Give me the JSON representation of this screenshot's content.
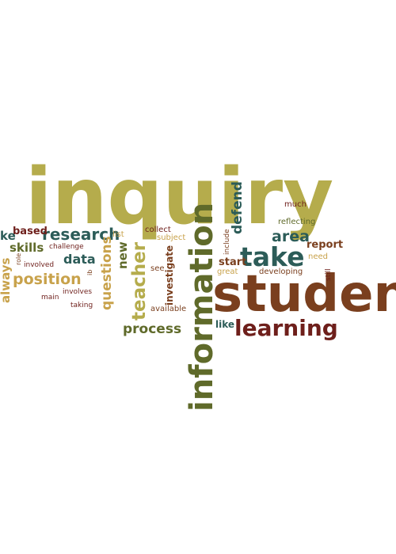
{
  "colors": {
    "olive": "#b5ac4c",
    "brown": "#7a3f1e",
    "maroon": "#6e1f1b",
    "teal": "#2c5c58",
    "dark_olive": "#5f6a2a",
    "tan": "#c8a24b"
  },
  "words": [
    {
      "text": "inquiry",
      "color": "#b5ac4c"
    },
    {
      "text": "student",
      "color": "#7a3f1e"
    },
    {
      "text": "information",
      "color": "#5f6a2a"
    },
    {
      "text": "take",
      "color": "#2c5c58"
    },
    {
      "text": "learning",
      "color": "#6e1f1b"
    },
    {
      "text": "research",
      "color": "#2c5c58"
    },
    {
      "text": "position",
      "color": "#c8a24b"
    },
    {
      "text": "teacher",
      "color": "#b5ac4c"
    },
    {
      "text": "questions",
      "color": "#c8a24b"
    },
    {
      "text": "process",
      "color": "#5f6a2a"
    },
    {
      "text": "area",
      "color": "#2c5c58"
    },
    {
      "text": "defend",
      "color": "#2c5c58"
    },
    {
      "text": "skills",
      "color": "#5f6a2a"
    },
    {
      "text": "data",
      "color": "#2c5c58"
    },
    {
      "text": "new",
      "color": "#5f6a2a"
    },
    {
      "text": "always",
      "color": "#c8a24b"
    },
    {
      "text": "based",
      "color": "#6e1f1b"
    },
    {
      "text": "ke",
      "color": "#2c5c58"
    },
    {
      "text": "investigate",
      "color": "#7a3f1e"
    },
    {
      "text": "start",
      "color": "#7a3f1e"
    },
    {
      "text": "report",
      "color": "#7a3f1e"
    },
    {
      "text": "like",
      "color": "#2c5c58"
    },
    {
      "text": "much",
      "color": "#6e1f1b"
    },
    {
      "text": "reflecting",
      "color": "#5f6a2a"
    },
    {
      "text": "developing",
      "color": "#7a3f1e"
    },
    {
      "text": "need",
      "color": "#c8a24b"
    },
    {
      "text": "still",
      "color": "#6e1f1b"
    },
    {
      "text": "collect",
      "color": "#6e1f1b"
    },
    {
      "text": "subject",
      "color": "#c8a24b"
    },
    {
      "text": "list",
      "color": "#c8a24b"
    },
    {
      "text": "include",
      "color": "#7a3f1e"
    },
    {
      "text": "great",
      "color": "#c8a24b"
    },
    {
      "text": "see",
      "color": "#7a3f1e"
    },
    {
      "text": "available",
      "color": "#7a3f1e"
    },
    {
      "text": "challenge",
      "color": "#6e1f1b"
    },
    {
      "text": "involved",
      "color": "#6e1f1b"
    },
    {
      "text": "involves",
      "color": "#6e1f1b"
    },
    {
      "text": "main",
      "color": "#6e1f1b"
    },
    {
      "text": "taking",
      "color": "#6e1f1b"
    },
    {
      "text": "role",
      "color": "#7a3f1e"
    },
    {
      "text": "ib",
      "color": "#7a3f1e"
    }
  ]
}
